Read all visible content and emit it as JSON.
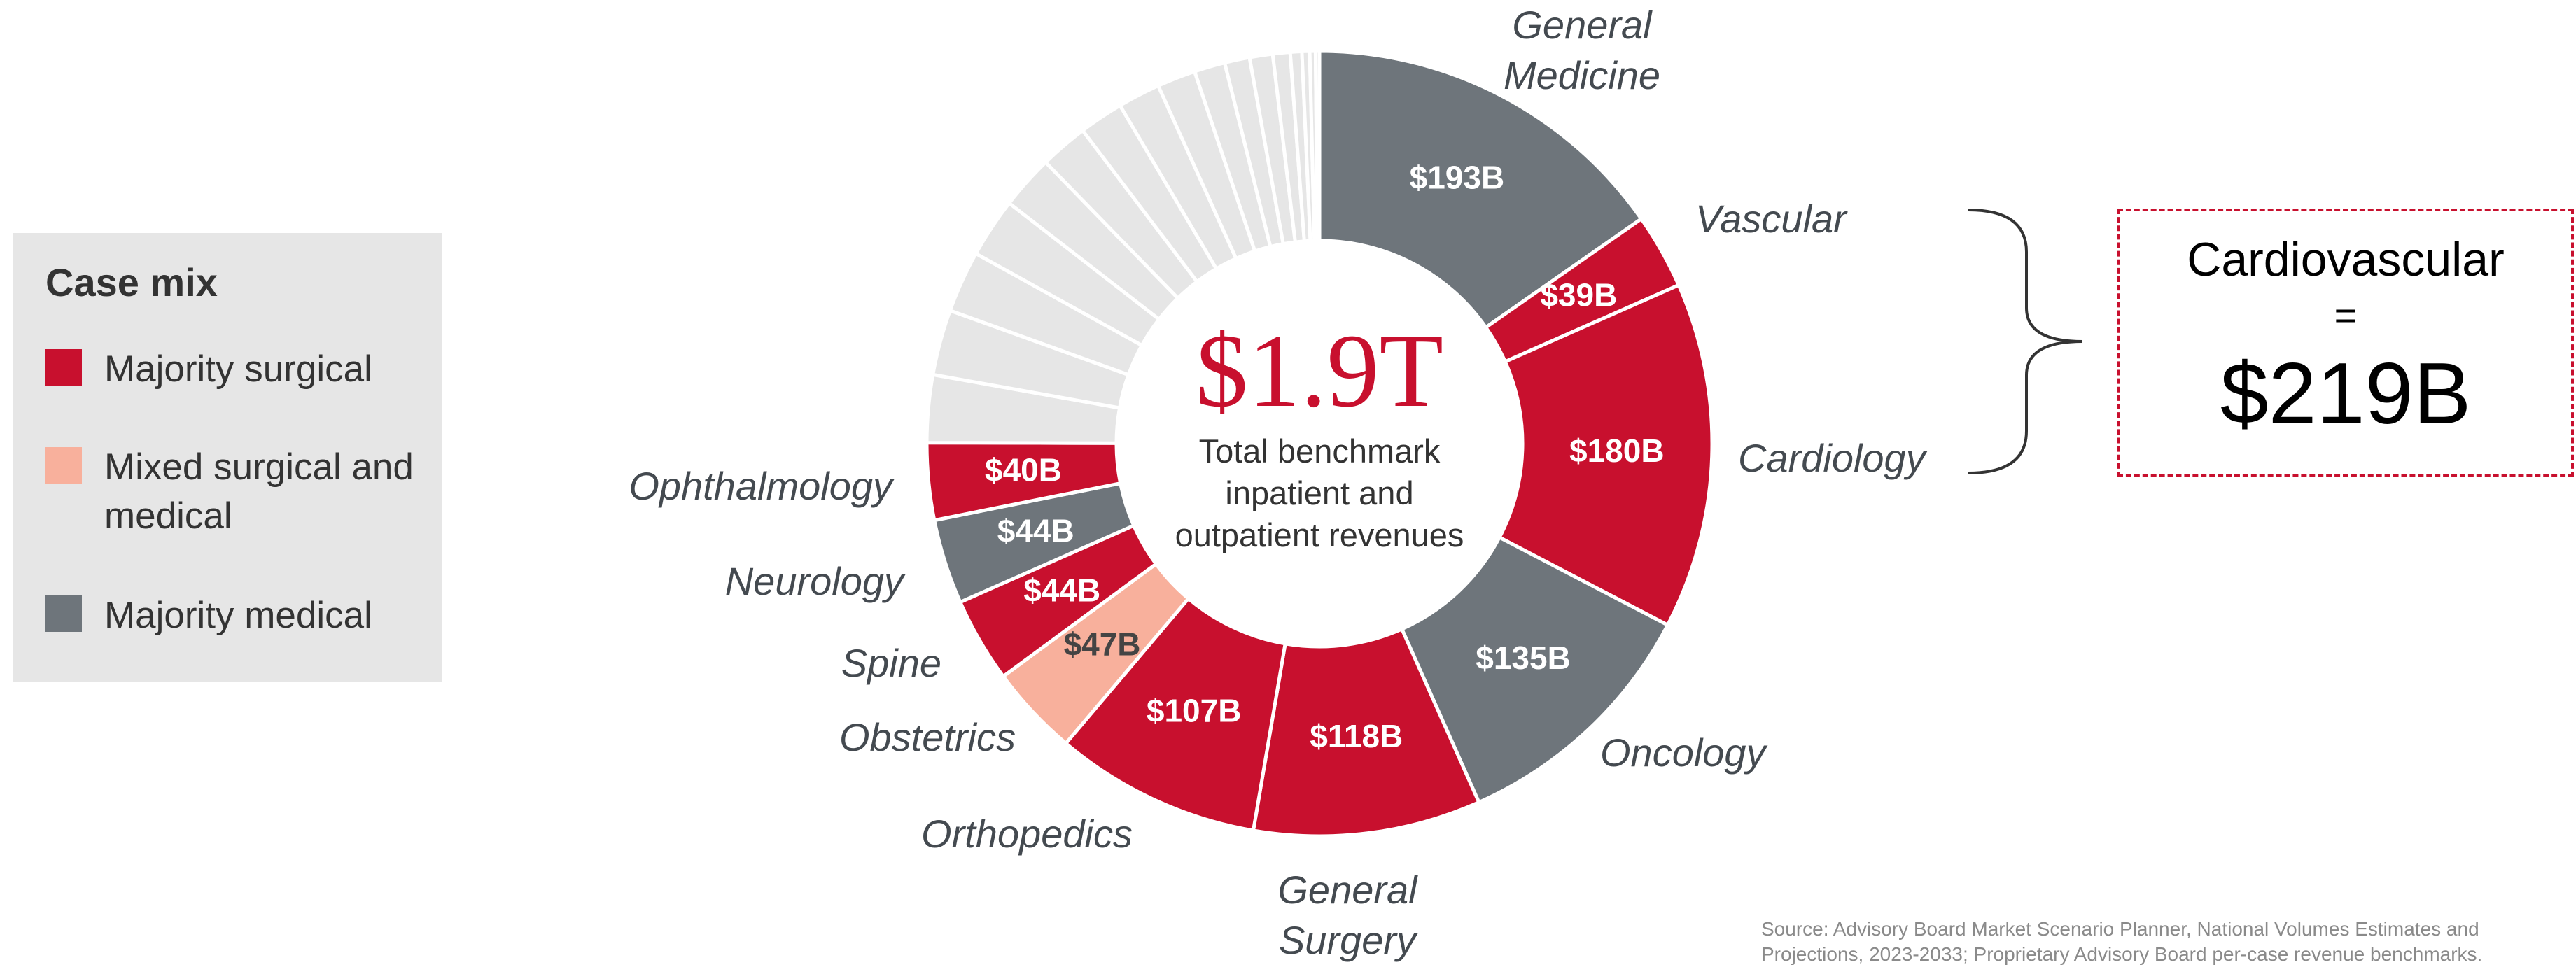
{
  "chart_data": {
    "type": "donut",
    "center_value": "$1.9T",
    "center_caption": "Total benchmark inpatient and outpatient revenues",
    "categories": [
      "General Medicine",
      "Vascular",
      "Cardiology",
      "Oncology",
      "General Surgery",
      "Orthopedics",
      "Obstetrics",
      "Spine",
      "Neurology",
      "Ophthalmology",
      null,
      null,
      null,
      null,
      null,
      null,
      null,
      null,
      null,
      null,
      null,
      null,
      null,
      null,
      null,
      null,
      null
    ],
    "values": [
      193,
      39,
      180,
      135,
      118,
      107,
      47,
      44,
      44,
      40,
      35,
      34,
      32,
      31,
      28,
      25,
      23,
      22,
      20,
      16,
      13,
      12,
      9,
      6,
      4,
      3,
      2
    ],
    "value_labels": [
      "$193B",
      "$39B",
      "$180B",
      "$135B",
      "$118B",
      "$107B",
      "$47B",
      "$44B",
      "$44B",
      "$40B",
      null,
      null,
      null,
      null,
      null,
      null,
      null,
      null,
      null,
      null,
      null,
      null,
      null,
      null,
      null,
      null,
      null
    ],
    "colors": [
      "#6e757b",
      "#c8102e",
      "#c8102e",
      "#6e757b",
      "#c8102e",
      "#c8102e",
      "#f8b09c",
      "#c8102e",
      "#6e757b",
      "#c8102e",
      "#e6e6e6",
      "#e6e6e6",
      "#e6e6e6",
      "#e6e6e6",
      "#e6e6e6",
      "#e6e6e6",
      "#e6e6e6",
      "#e6e6e6",
      "#e6e6e6",
      "#e6e6e6",
      "#e6e6e6",
      "#e6e6e6",
      "#e6e6e6",
      "#e6e6e6",
      "#e6e6e6",
      "#e6e6e6",
      "#e6e6e6"
    ],
    "legend": {
      "title": "Case mix",
      "items": [
        {
          "name": "Majority surgical",
          "color": "#c8102e"
        },
        {
          "name": "Mixed surgical and medical",
          "color": "#f8b09c"
        },
        {
          "name": "Majority medical",
          "color": "#6e757b"
        }
      ]
    },
    "callout": {
      "title": "Cardiovascular",
      "operator": "=",
      "value": "$219B"
    },
    "source": "Source: Advisory Board Market Scenario Planner, National Volumes Estimates and Projections, 2023-2033; Proprietary Advisory Board per-case revenue benchmarks."
  }
}
